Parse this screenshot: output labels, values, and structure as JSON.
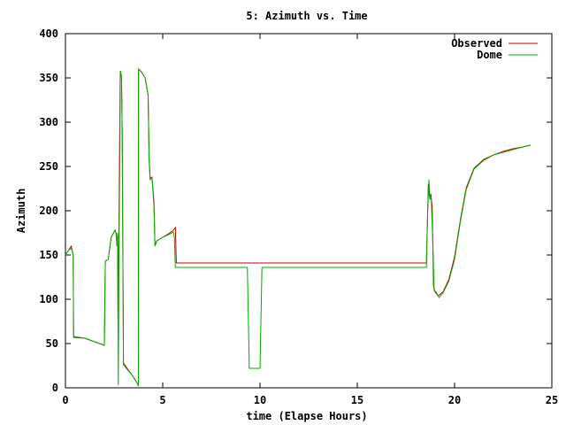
{
  "chart_data": {
    "type": "line",
    "title": "5: Azimuth vs. Time",
    "xlabel": "time (Elapse Hours)",
    "ylabel": "Azimuth",
    "xlim": [
      0,
      25
    ],
    "ylim": [
      0,
      400
    ],
    "xticks": [
      0,
      5,
      10,
      15,
      20,
      25
    ],
    "yticks": [
      0,
      50,
      100,
      150,
      200,
      250,
      300,
      350,
      400
    ],
    "grid": false,
    "legend_position": "top-right",
    "series": [
      {
        "name": "Observed",
        "color": "#cc0000",
        "points": [
          [
            0.0,
            150
          ],
          [
            0.15,
            155
          ],
          [
            0.3,
            160
          ],
          [
            0.4,
            150
          ],
          [
            0.42,
            57
          ],
          [
            1.0,
            56
          ],
          [
            1.5,
            52
          ],
          [
            2.0,
            48
          ],
          [
            2.05,
            143
          ],
          [
            2.2,
            145
          ],
          [
            2.35,
            170
          ],
          [
            2.55,
            178
          ],
          [
            2.6,
            175
          ],
          [
            2.65,
            160
          ],
          [
            2.68,
            175
          ],
          [
            2.7,
            80
          ],
          [
            2.75,
            180
          ],
          [
            2.78,
            270
          ],
          [
            2.82,
            358
          ],
          [
            2.88,
            350
          ],
          [
            2.92,
            290
          ],
          [
            2.98,
            28
          ],
          [
            3.4,
            15
          ],
          [
            3.7,
            5
          ],
          [
            3.75,
            2
          ],
          [
            3.76,
            360
          ],
          [
            3.9,
            357
          ],
          [
            4.1,
            350
          ],
          [
            4.25,
            330
          ],
          [
            4.3,
            262
          ],
          [
            4.35,
            237
          ],
          [
            4.45,
            238
          ],
          [
            4.55,
            210
          ],
          [
            4.6,
            162
          ],
          [
            4.7,
            166
          ],
          [
            5.0,
            170
          ],
          [
            5.3,
            174
          ],
          [
            5.55,
            178
          ],
          [
            5.65,
            181
          ],
          [
            5.7,
            141
          ],
          [
            18.55,
            141
          ],
          [
            18.6,
            182
          ],
          [
            18.65,
            230
          ],
          [
            18.72,
            215
          ],
          [
            18.78,
            218
          ],
          [
            18.85,
            205
          ],
          [
            18.92,
            115
          ],
          [
            19.0,
            108
          ],
          [
            19.15,
            104
          ],
          [
            19.4,
            108
          ],
          [
            19.7,
            122
          ],
          [
            20.0,
            148
          ],
          [
            20.3,
            190
          ],
          [
            20.6,
            226
          ],
          [
            21.0,
            248
          ],
          [
            21.5,
            258
          ],
          [
            22.0,
            263
          ],
          [
            22.5,
            267
          ],
          [
            23.0,
            270
          ],
          [
            23.5,
            272
          ],
          [
            23.9,
            274
          ]
        ]
      },
      {
        "name": "Dome",
        "color": "#00aa00",
        "points": [
          [
            0.0,
            150
          ],
          [
            0.15,
            155
          ],
          [
            0.3,
            158
          ],
          [
            0.4,
            150
          ],
          [
            0.42,
            58
          ],
          [
            1.0,
            56
          ],
          [
            1.5,
            52
          ],
          [
            2.0,
            48
          ],
          [
            2.05,
            143
          ],
          [
            2.2,
            145
          ],
          [
            2.35,
            170
          ],
          [
            2.55,
            178
          ],
          [
            2.6,
            175
          ],
          [
            2.65,
            160
          ],
          [
            2.68,
            175
          ],
          [
            2.72,
            3
          ],
          [
            2.76,
            175
          ],
          [
            2.8,
            270
          ],
          [
            2.82,
            358
          ],
          [
            2.88,
            352
          ],
          [
            2.92,
            290
          ],
          [
            2.98,
            26
          ],
          [
            3.4,
            15
          ],
          [
            3.7,
            5
          ],
          [
            3.75,
            2
          ],
          [
            3.76,
            360
          ],
          [
            3.9,
            357
          ],
          [
            4.1,
            350
          ],
          [
            4.25,
            330
          ],
          [
            4.3,
            258
          ],
          [
            4.35,
            235
          ],
          [
            4.45,
            237
          ],
          [
            4.55,
            205
          ],
          [
            4.6,
            160
          ],
          [
            4.7,
            166
          ],
          [
            5.0,
            170
          ],
          [
            5.3,
            173
          ],
          [
            5.55,
            176
          ],
          [
            5.6,
            170
          ],
          [
            5.65,
            136
          ],
          [
            9.35,
            136
          ],
          [
            9.45,
            22
          ],
          [
            10.0,
            22
          ],
          [
            10.1,
            136
          ],
          [
            18.55,
            136
          ],
          [
            18.62,
            200
          ],
          [
            18.68,
            235
          ],
          [
            18.74,
            213
          ],
          [
            18.8,
            215
          ],
          [
            18.88,
            165
          ],
          [
            18.95,
            110
          ],
          [
            19.05,
            108
          ],
          [
            19.2,
            102
          ],
          [
            19.4,
            107
          ],
          [
            19.7,
            120
          ],
          [
            20.0,
            145
          ],
          [
            20.3,
            188
          ],
          [
            20.6,
            224
          ],
          [
            21.0,
            247
          ],
          [
            21.5,
            257
          ],
          [
            22.0,
            263
          ],
          [
            22.5,
            266
          ],
          [
            23.0,
            269
          ],
          [
            23.5,
            272
          ],
          [
            23.9,
            274
          ]
        ]
      }
    ]
  }
}
